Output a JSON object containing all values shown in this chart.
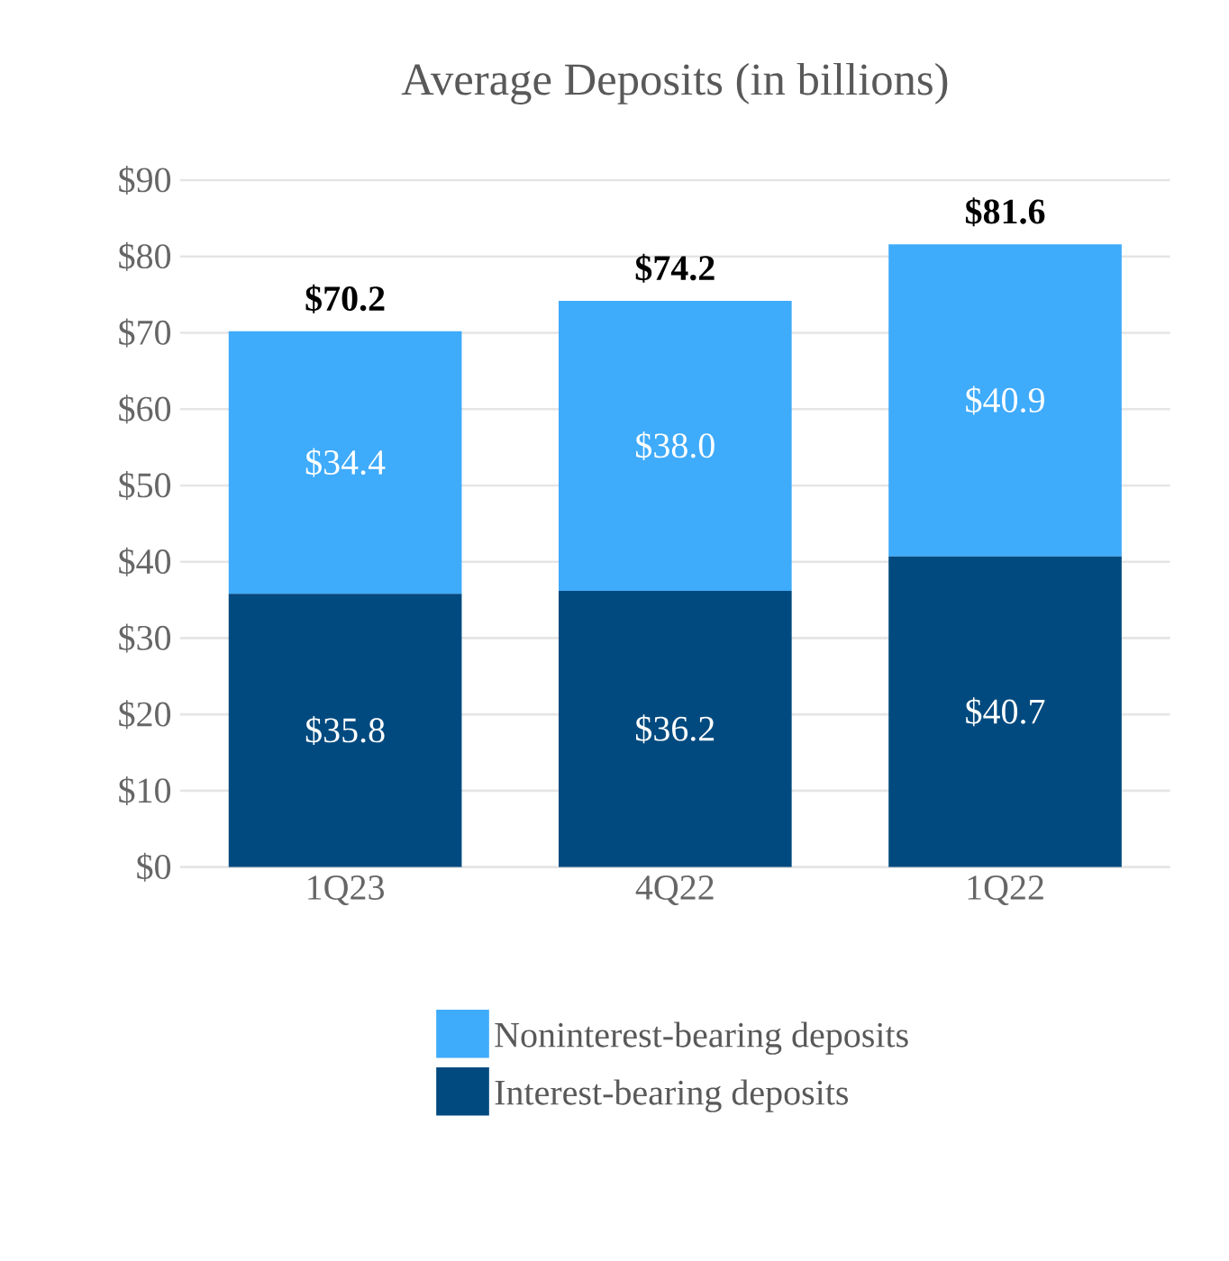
{
  "chart_data": {
    "type": "bar",
    "title": "Average Deposits (in billions)",
    "stacked": true,
    "categories": [
      "1Q23",
      "4Q22",
      "1Q22"
    ],
    "series": [
      {
        "name": "Interest-bearing deposits",
        "color": "#004a7f",
        "values": [
          35.8,
          36.2,
          40.7
        ],
        "value_labels": [
          "$35.8",
          "$36.2",
          "$40.7"
        ]
      },
      {
        "name": "Noninterest-bearing deposits",
        "color": "#3fabfb",
        "values": [
          34.4,
          38.0,
          40.9
        ],
        "value_labels": [
          "$34.4",
          "$38.0",
          "$40.9"
        ]
      }
    ],
    "totals": [
      "$70.2",
      "$74.2",
      "$81.6"
    ],
    "ylim": [
      0,
      90
    ],
    "yticks": [
      {
        "value": 0,
        "label": "$0"
      },
      {
        "value": 10,
        "label": "$10"
      },
      {
        "value": 20,
        "label": "$20"
      },
      {
        "value": 30,
        "label": "$30"
      },
      {
        "value": 40,
        "label": "$40"
      },
      {
        "value": 50,
        "label": "$50"
      },
      {
        "value": 60,
        "label": "$60"
      },
      {
        "value": 70,
        "label": "$70"
      },
      {
        "value": 80,
        "label": "$80"
      },
      {
        "value": 90,
        "label": "$90"
      }
    ],
    "grid": "y",
    "legend": "bottom"
  }
}
